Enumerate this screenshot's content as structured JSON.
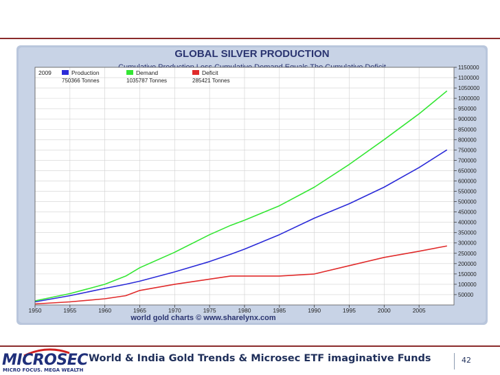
{
  "slide": {
    "footer_title": "World & India Gold Trends & Microsec ETF imaginative Funds",
    "page_number": "42",
    "logo_text": "MICROSEC",
    "logo_tagline": "MICRO FOCUS. MEGA WEALTH",
    "accent_color": "#8a2a2a",
    "logo_color": "#1f2f7a"
  },
  "chart_data": {
    "type": "line",
    "title": "GLOBAL SILVER PRODUCTION",
    "subtitle": "Cumulative Production Less Cumulative Demand Equals The Cumulative Deficit",
    "footer": "world gold charts © www.sharelynx.com",
    "legend_year": "2009",
    "legend_unit": "Tonnes",
    "legend_placement": "top-left",
    "grid": true,
    "xlim": [
      1950,
      2010
    ],
    "ylim": [
      0,
      1150000
    ],
    "x_ticks": [
      "1950",
      "1955",
      "1960",
      "1965",
      "1970",
      "1975",
      "1980",
      "1985",
      "1990",
      "1995",
      "2000",
      "2005"
    ],
    "y_ticks": [
      "50000",
      "100000",
      "150000",
      "200000",
      "250000",
      "300000",
      "350000",
      "400000",
      "450000",
      "500000",
      "550000",
      "600000",
      "650000",
      "700000",
      "750000",
      "800000",
      "850000",
      "900000",
      "950000",
      "1000000",
      "1050000",
      "1100000",
      "1150000"
    ],
    "x": [
      1950,
      1955,
      1960,
      1963,
      1965,
      1970,
      1975,
      1978,
      1980,
      1985,
      1990,
      1995,
      2000,
      2005,
      2009
    ],
    "series": [
      {
        "name": "Production",
        "final_value": "750366",
        "color": "#2a2ad8",
        "values": [
          15000,
          45000,
          80000,
          100000,
          115000,
          160000,
          210000,
          245000,
          270000,
          340000,
          420000,
          490000,
          570000,
          665000,
          750366
        ]
      },
      {
        "name": "Demand",
        "final_value": "1035787",
        "color": "#33e633",
        "values": [
          20000,
          55000,
          100000,
          140000,
          180000,
          255000,
          340000,
          385000,
          410000,
          480000,
          570000,
          680000,
          800000,
          925000,
          1035787
        ]
      },
      {
        "name": "Deficit",
        "final_value": "285421",
        "color": "#e02a2a",
        "values": [
          5000,
          15000,
          30000,
          45000,
          70000,
          100000,
          125000,
          140000,
          140000,
          140000,
          150000,
          190000,
          230000,
          260000,
          285421
        ]
      }
    ]
  }
}
